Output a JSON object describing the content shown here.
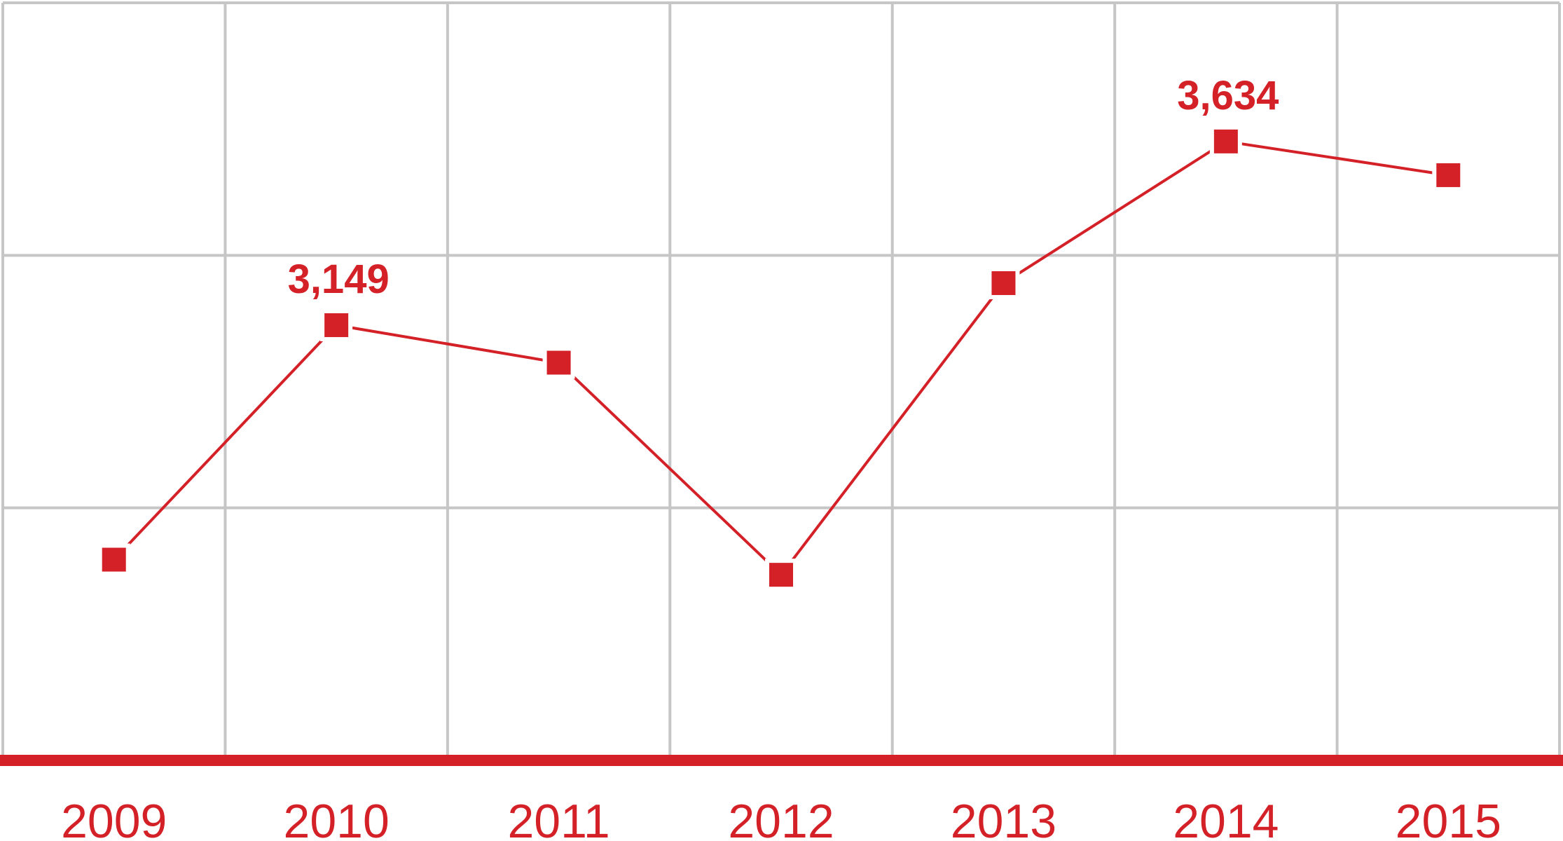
{
  "chart_data": {
    "type": "line",
    "title": "",
    "xlabel": "",
    "ylabel": "",
    "categories": [
      "2009",
      "2010",
      "2011",
      "2012",
      "2013",
      "2014",
      "2015"
    ],
    "series": [
      {
        "values": [
          2530,
          3149,
          3050,
          2490,
          3260,
          3634,
          3545
        ]
      }
    ],
    "data_labels": [
      {
        "index": 1,
        "text": "3,149"
      },
      {
        "index": 5,
        "text": "3,634"
      }
    ],
    "ylim": [
      2000,
      4000
    ],
    "grid": true,
    "legend": "none",
    "colors": {
      "line": "#d42027",
      "grid": "#c6c6c6",
      "axis": "#d42027",
      "text": "#d42027"
    }
  }
}
